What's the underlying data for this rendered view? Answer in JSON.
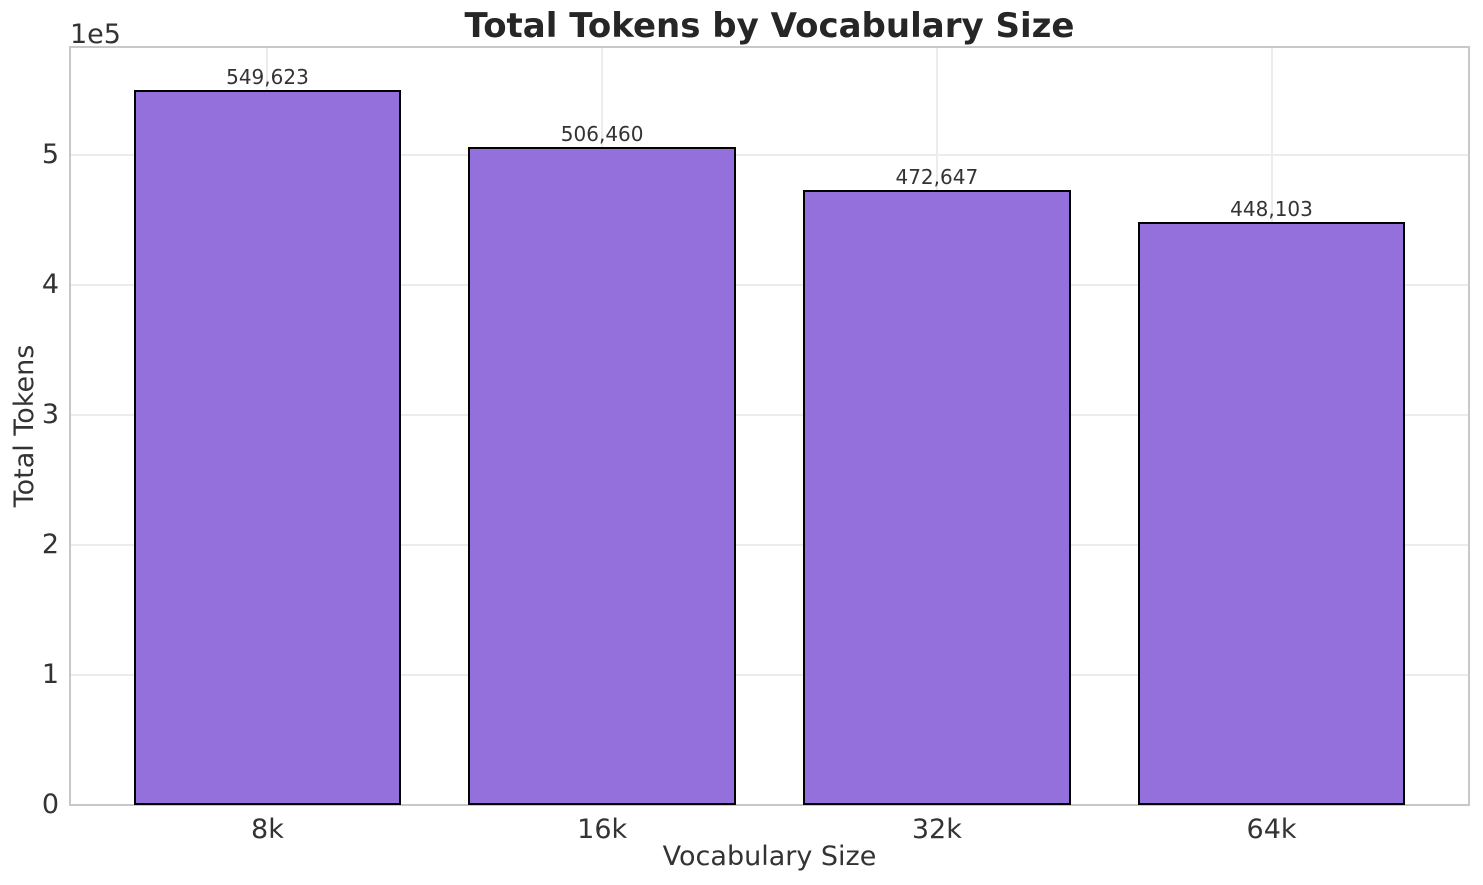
{
  "chart_data": {
    "type": "bar",
    "title": "Total Tokens by Vocabulary Size",
    "xlabel": "Vocabulary Size",
    "ylabel": "Total Tokens",
    "y_offset_text": "1e5",
    "categories": [
      "8k",
      "16k",
      "32k",
      "64k"
    ],
    "values": [
      549623,
      506460,
      472647,
      448103
    ],
    "value_labels": [
      "549,623",
      "506,460",
      "472,647",
      "448,103"
    ],
    "y_ticks": [
      0,
      1,
      2,
      3,
      4,
      5
    ],
    "y_tick_labels": [
      "0",
      "1",
      "2",
      "3",
      "4",
      "5"
    ],
    "y_tick_scale": 100000,
    "ylim": [
      0,
      583000
    ],
    "xlim": [
      -0.59,
      3.59
    ],
    "bar_unit_width": 0.8,
    "grid": true,
    "legend_position": "none",
    "colors": {
      "bar_fill": "#9370db",
      "bar_edge": "#000000",
      "grid_line": "#ececec",
      "spine": "#c8c8c8",
      "title_text": "#262626",
      "label_text": "#333333",
      "background": "#ffffff"
    }
  }
}
